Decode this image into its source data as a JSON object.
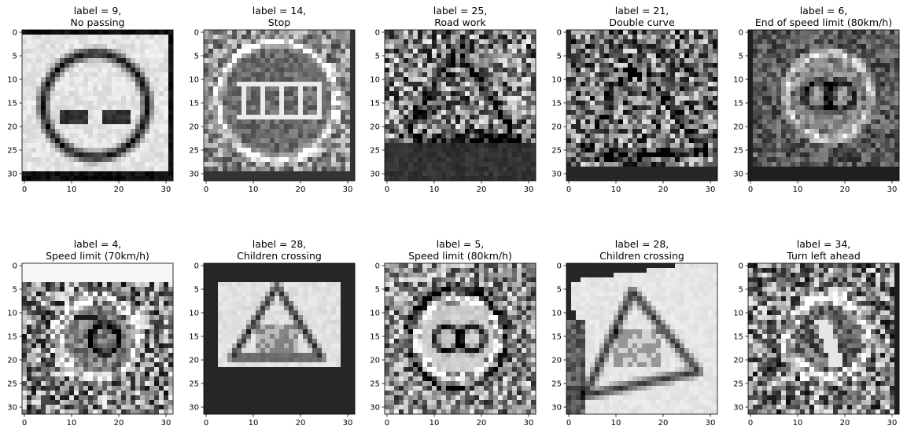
{
  "chart_data": {
    "type": "heatmap",
    "colormap": "gray",
    "image_size": 32,
    "grid": false,
    "x_ticks": [
      0,
      10,
      20,
      30
    ],
    "y_ticks": [
      0,
      5,
      10,
      15,
      20,
      25,
      30
    ],
    "xlim": [
      -0.5,
      31.5
    ],
    "ylim": [
      31.5,
      -0.5
    ],
    "panels": [
      {
        "title_line1": "label = 9,",
        "title_line2": "No passing",
        "label": 9,
        "sign": "no-passing"
      },
      {
        "title_line1": "label = 14,",
        "title_line2": "Stop",
        "label": 14,
        "sign": "stop"
      },
      {
        "title_line1": "label = 25,",
        "title_line2": "Road work",
        "label": 25,
        "sign": "road-work"
      },
      {
        "title_line1": "label = 21,",
        "title_line2": "Double curve",
        "label": 21,
        "sign": "double-curve"
      },
      {
        "title_line1": "label = 6,",
        "title_line2": "End of speed limit (80km/h)",
        "label": 6,
        "sign": "end-speed-80"
      },
      {
        "title_line1": "label = 4,",
        "title_line2": "Speed limit (70km/h)",
        "label": 4,
        "sign": "speed-70"
      },
      {
        "title_line1": "label = 28,",
        "title_line2": "Children crossing",
        "label": 28,
        "sign": "children-crossing"
      },
      {
        "title_line1": "label = 5,",
        "title_line2": "Speed limit (80km/h)",
        "label": 5,
        "sign": "speed-80"
      },
      {
        "title_line1": "label = 28,",
        "title_line2": "Children crossing",
        "label": 28,
        "sign": "children-crossing-tilted"
      },
      {
        "title_line1": "label = 34,",
        "title_line2": "Turn left ahead",
        "label": 34,
        "sign": "turn-left-ahead"
      }
    ]
  }
}
